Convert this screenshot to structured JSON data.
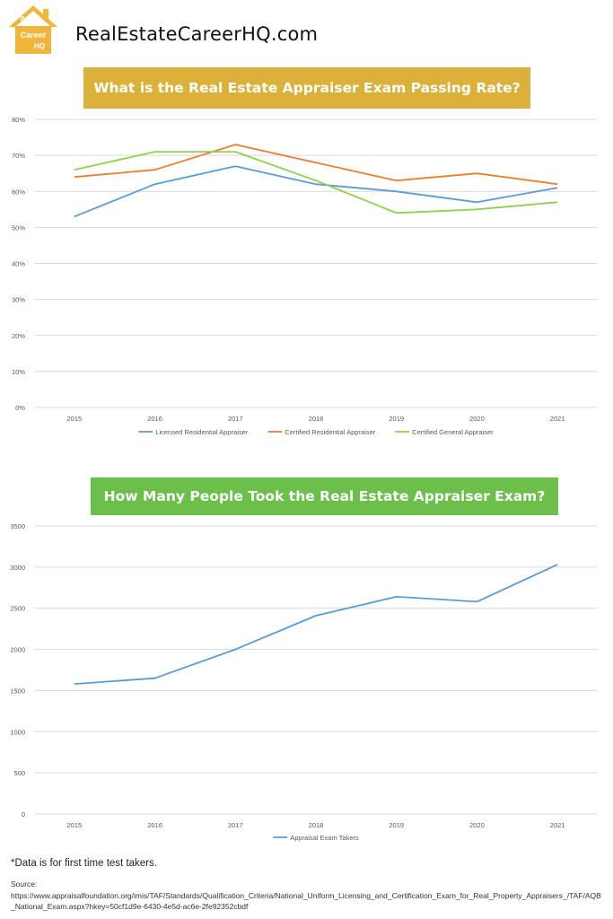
{
  "header": {
    "site_name": "RealEstateCareerHQ.com",
    "logo_text": [
      "Real",
      "Estate",
      "Career",
      "HQ"
    ],
    "logo_color": "#f0b63c"
  },
  "colors": {
    "banner1_bg": "#dbb13a",
    "banner2_bg": "#6dbf4b",
    "grid": "#d9d9d9",
    "axis_text": "#595959"
  },
  "banner1": {
    "text": "What is the Real Estate Appraiser Exam Passing Rate?"
  },
  "banner2": {
    "text": "How Many People Took the Real Estate Appraiser Exam?"
  },
  "chart_data": [
    {
      "type": "line",
      "title": "What is the Real Estate Appraiser Exam Passing Rate?",
      "x": [
        "2015",
        "2016",
        "2017",
        "2018",
        "2019",
        "2020",
        "2021"
      ],
      "ylim": [
        0,
        80
      ],
      "yticks": [
        "0%",
        "10%",
        "20%",
        "30%",
        "40%",
        "50%",
        "60%",
        "70%",
        "80%"
      ],
      "ytick_values": [
        0,
        10,
        20,
        30,
        40,
        50,
        60,
        70,
        80
      ],
      "grid": true,
      "legend": "bottom",
      "series": [
        {
          "name": "Licensed Residential Appraiser",
          "color": "#5b9bd5",
          "values": [
            53,
            62,
            67,
            62,
            60,
            57,
            61
          ]
        },
        {
          "name": "Certified Residential Appraiser",
          "color": "#ed7d31",
          "values": [
            64,
            66,
            73,
            68,
            63,
            65,
            62
          ]
        },
        {
          "name": "Certified General Appraiser",
          "color": "#92d050",
          "values": [
            66,
            71,
            71,
            63,
            54,
            55,
            57
          ]
        }
      ]
    },
    {
      "type": "line",
      "title": "How Many People Took the Real Estate Appraiser Exam?",
      "x": [
        "2015",
        "2016",
        "2017",
        "2018",
        "2019",
        "2020",
        "2021"
      ],
      "ylim": [
        0,
        3500
      ],
      "yticks": [
        "0",
        "500",
        "1000",
        "1500",
        "2000",
        "2500",
        "3000",
        "3500"
      ],
      "ytick_values": [
        0,
        500,
        1000,
        1500,
        2000,
        2500,
        3000,
        3500
      ],
      "grid": true,
      "legend": "bottom",
      "series": [
        {
          "name": "Appraisal Exam Takers",
          "color": "#5b9bd5",
          "values": [
            1580,
            1650,
            2000,
            2410,
            2640,
            2580,
            3030
          ]
        }
      ]
    }
  ],
  "footnote": "*Data is for first time test takers.",
  "source": {
    "label": "Source:",
    "url": "https://www.appraisalfoundation.org/imis/TAF/Standards/Qualification_Criteria/National_Uniform_Licensing_and_Certification_Exam_for_Real_Property_Appraisers_/TAF/AQB_National_Exam.aspx?hkey=50cf1d9e-6430-4e5d-ac6e-2fe92352cbdf"
  }
}
